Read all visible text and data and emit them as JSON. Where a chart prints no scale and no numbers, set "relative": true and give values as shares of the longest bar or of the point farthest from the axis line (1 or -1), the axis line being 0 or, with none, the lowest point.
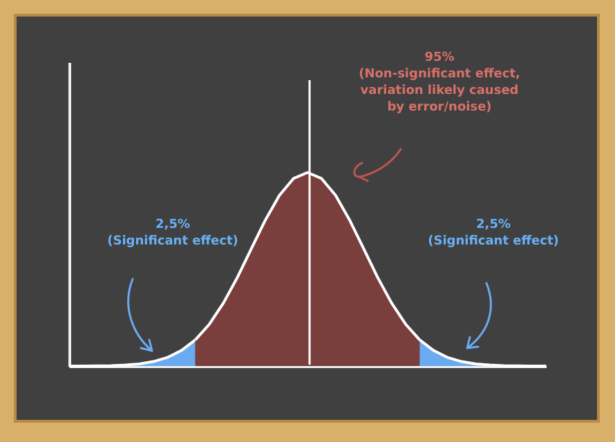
{
  "chart_data": {
    "type": "area",
    "relative": true,
    "categories": [
      null,
      null,
      null,
      null,
      null,
      null,
      null,
      null,
      null,
      null,
      null,
      null,
      null,
      null,
      null,
      null,
      null,
      null,
      null,
      null,
      null,
      null,
      null,
      null,
      null,
      null,
      null,
      null,
      null,
      null,
      null,
      null,
      null,
      null,
      null
    ],
    "series": [
      {
        "color": "#6aaaf0",
        "values": [
          0,
          0,
          0.001,
          0.002,
          0.005,
          0.011,
          0.023,
          0.044,
          0.08,
          0.135,
          null,
          null,
          null,
          null,
          null,
          null,
          null,
          null,
          null,
          null,
          null,
          null,
          null,
          null,
          null,
          null,
          null,
          null,
          null,
          null,
          null,
          null,
          null,
          null,
          null
        ]
      },
      {
        "color": "#7a3e3c",
        "values": [
          null,
          null,
          null,
          null,
          null,
          null,
          null,
          null,
          null,
          0.135,
          0.216,
          0.325,
          0.458,
          0.607,
          0.755,
          0.882,
          0.969,
          1,
          0.969,
          0.882,
          0.755,
          0.607,
          0.458,
          0.325,
          0.216,
          0.135,
          null,
          null,
          null,
          null,
          null,
          null,
          null,
          null,
          null
        ]
      },
      {
        "color": "#6aaaf0",
        "values": [
          null,
          null,
          null,
          null,
          null,
          null,
          null,
          null,
          null,
          null,
          null,
          null,
          null,
          null,
          null,
          null,
          null,
          null,
          null,
          null,
          null,
          null,
          null,
          null,
          null,
          0.135,
          0.08,
          0.044,
          0.023,
          0.011,
          0.005,
          0.002,
          0.001,
          0,
          0
        ]
      }
    ],
    "annotations": [
      "95%\n(Non-significant effect,\nvariation likely caused\nby error/noise)",
      "2,5%\n(Significant effect)",
      "2,5%\n(Significant effect)"
    ]
  }
}
